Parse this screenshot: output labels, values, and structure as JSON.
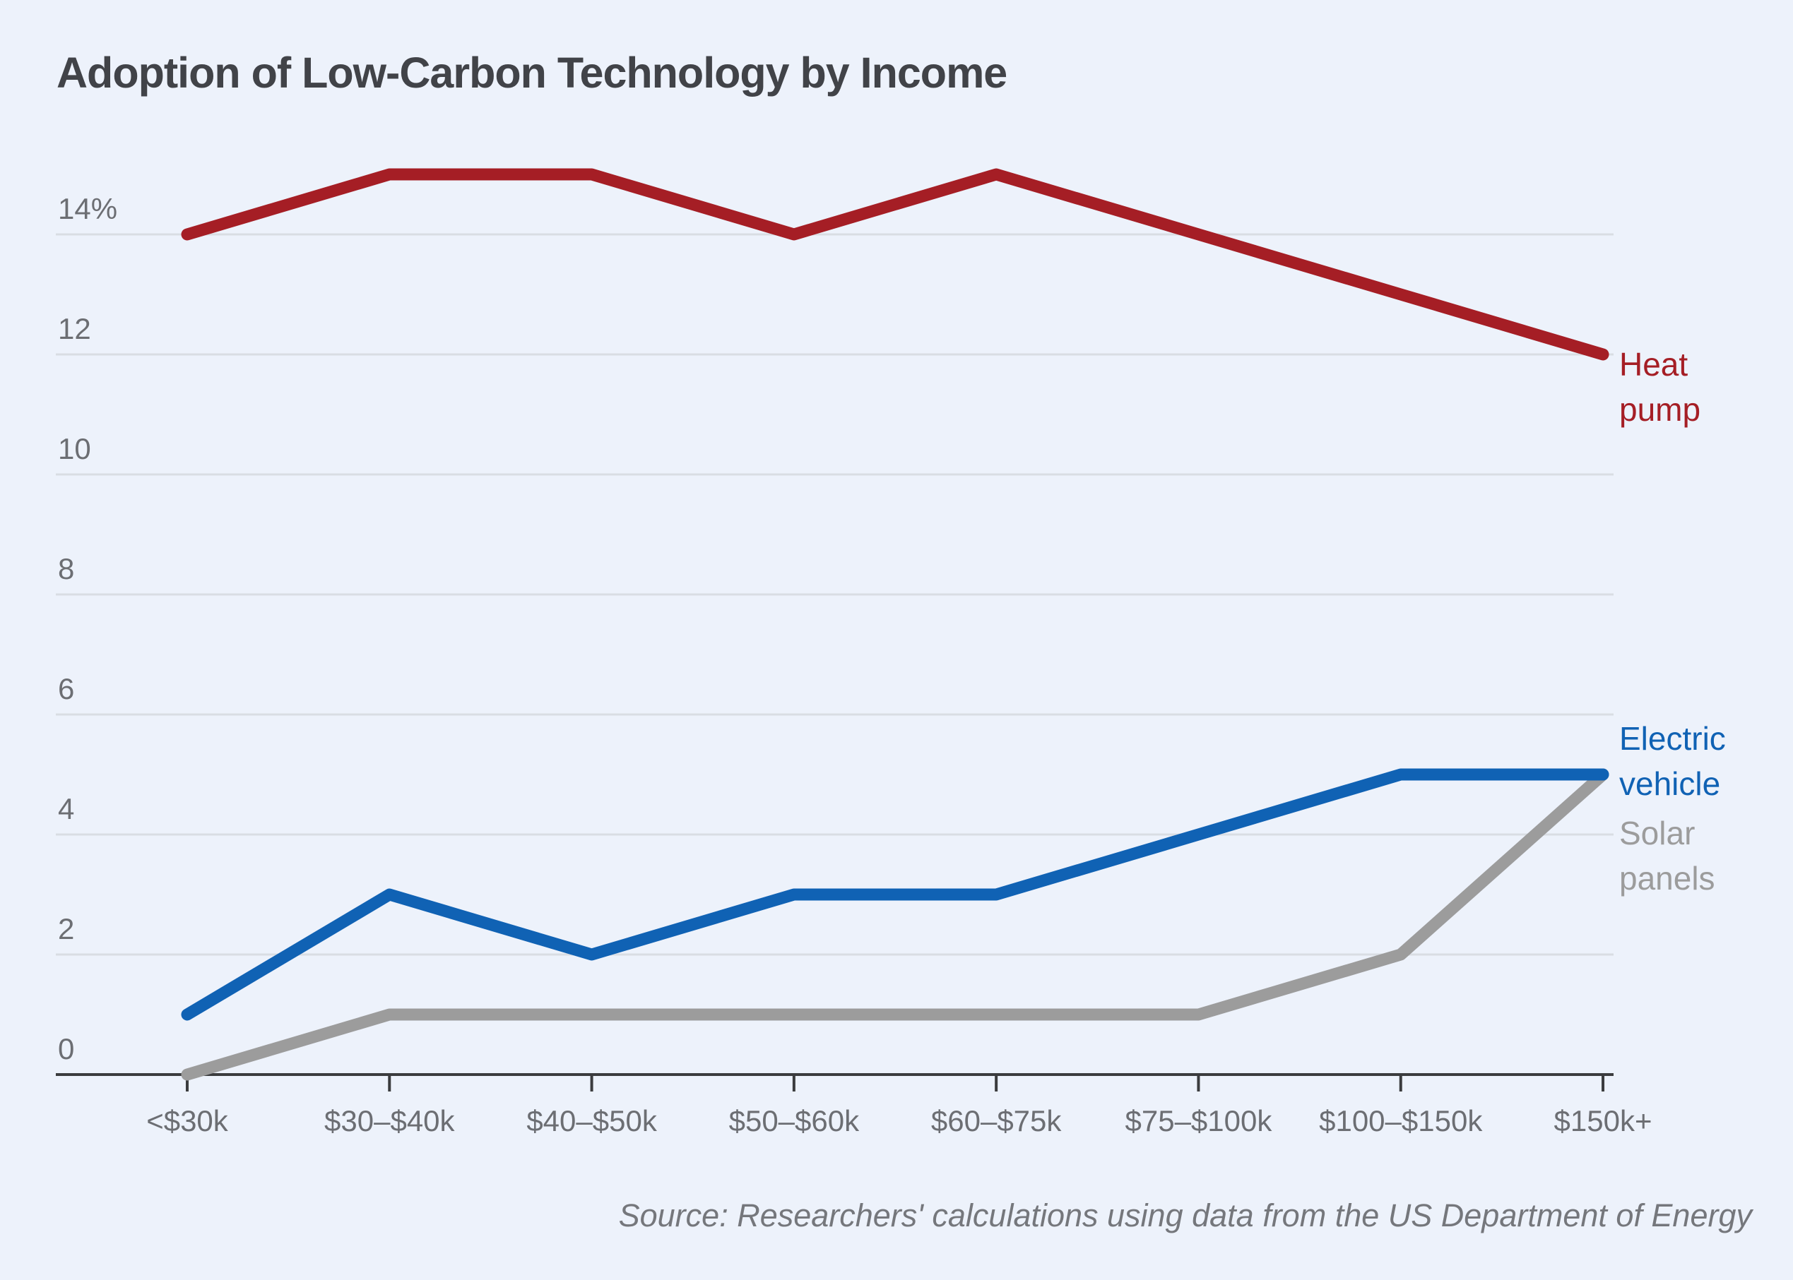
{
  "chart_data": {
    "type": "line",
    "title": "Adoption of Low-Carbon Technology by Income",
    "source_note": "Source: Researchers' calculations using data from the US Department of Energy",
    "categories": [
      "<$30k",
      "$30–$40k",
      "$40–$50k",
      "$50–$60k",
      "$60–$75k",
      "$75–$100k",
      "$100–$150k",
      "$150k+"
    ],
    "series": [
      {
        "name": "Heat pump",
        "label_lines": [
          "Heat",
          "pump"
        ],
        "color": "#a51e25",
        "values": [
          14,
          15,
          15,
          14,
          15,
          14,
          13,
          12
        ]
      },
      {
        "name": "Electric vehicle",
        "label_lines": [
          "Electric",
          "vehicle"
        ],
        "color": "#1062b4",
        "values": [
          1,
          3,
          2,
          3,
          3,
          4,
          5,
          5
        ]
      },
      {
        "name": "Solar panels",
        "label_lines": [
          "Solar",
          "panels"
        ],
        "color": "#9c9c9c",
        "values": [
          0,
          1,
          1,
          1,
          1,
          1,
          2,
          5
        ]
      }
    ],
    "y_axis": {
      "ticks": [
        0,
        2,
        4,
        6,
        8,
        10,
        12,
        14
      ],
      "top_tick_label": "14%",
      "unit": "%",
      "range": [
        0,
        15.5
      ]
    },
    "grid": "horizontal",
    "legend_position": "right-of-line-end",
    "colors": {
      "background": "#edf2fb",
      "gridline": "#d9dde3",
      "axis": "#3b3c3e",
      "tick_label": "#6c6e73",
      "title": "#414348",
      "source": "#75777c"
    }
  }
}
